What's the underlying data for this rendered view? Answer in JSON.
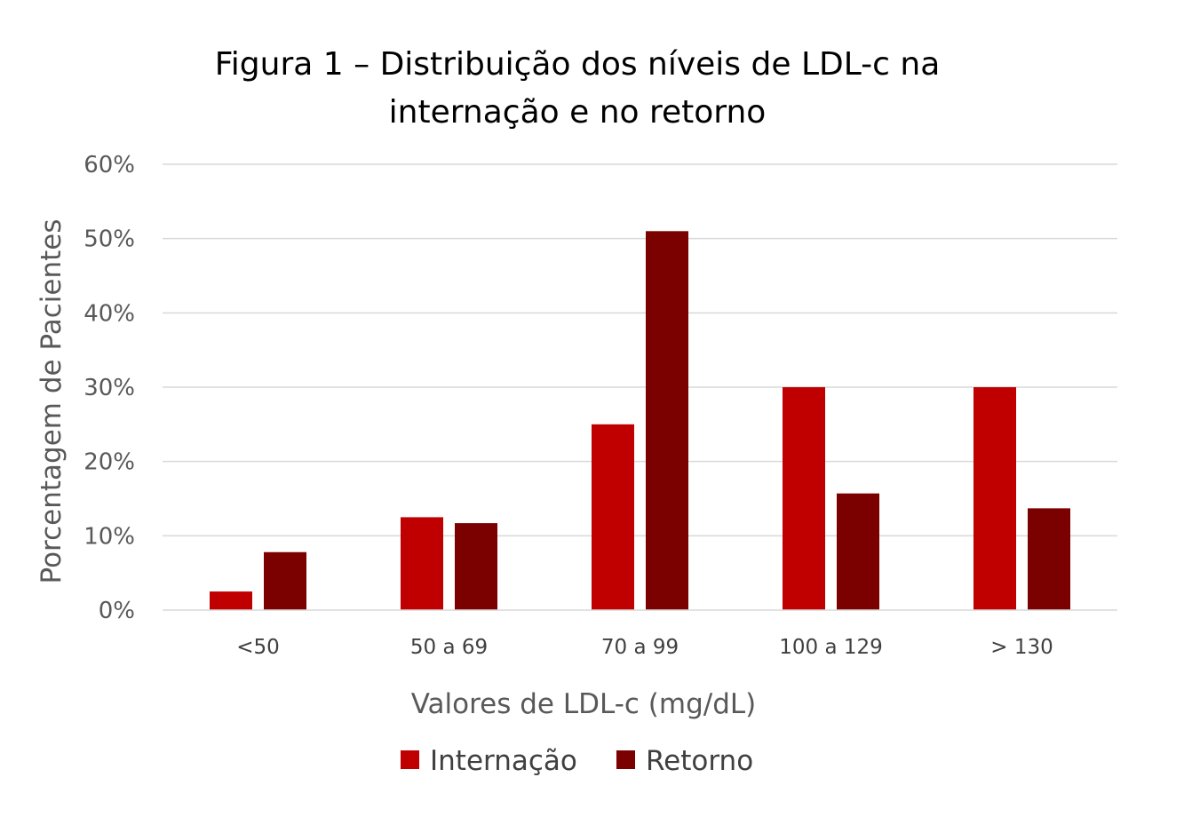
{
  "chart_data": {
    "type": "bar",
    "title": "Figura 1 – Distribuição dos níveis de LDL-c na internação e no retorno",
    "title_lines": [
      "Figura 1 – Distribuição dos níveis de LDL-c na",
      "internação e no retorno"
    ],
    "xlabel": "Valores de LDL-c (mg/dL)",
    "ylabel": "Porcentagem de Pacientes",
    "categories": [
      "<50",
      "50 a 69",
      "70 a 99",
      "100 a 129",
      "> 130"
    ],
    "series": [
      {
        "name": "Internação",
        "color": "#C00000",
        "values": [
          2.5,
          12.5,
          25,
          30,
          30
        ]
      },
      {
        "name": "Retorno",
        "color": "#7B0000",
        "values": [
          7.8,
          11.7,
          51,
          15.7,
          13.7
        ]
      }
    ],
    "ylim": [
      0,
      60
    ],
    "yticks": [
      0,
      10,
      20,
      30,
      40,
      50,
      60
    ],
    "ytick_labels": [
      "0%",
      "10%",
      "20%",
      "30%",
      "40%",
      "50%",
      "60%"
    ],
    "grid": true,
    "gridline_color": "#D9D9D9",
    "legend": "bottom-center"
  }
}
